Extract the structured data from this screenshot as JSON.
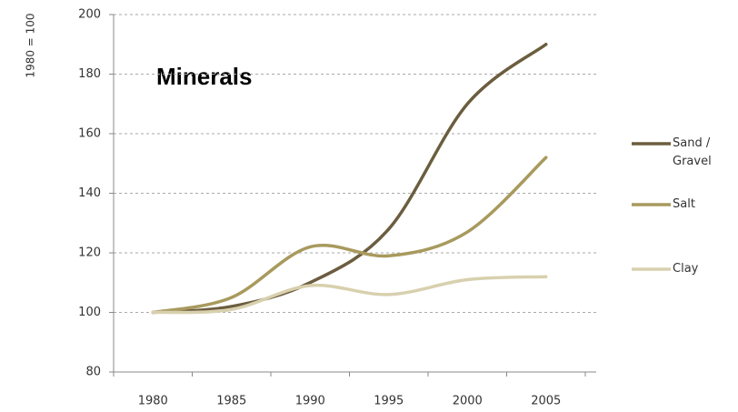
{
  "chart_data": {
    "type": "line",
    "title": "Minerals",
    "y_label": "1980 = 100",
    "categories": [
      "1980",
      "1985",
      "1990",
      "1995",
      "2000",
      "2005"
    ],
    "series": [
      {
        "name": "Sand / Gravel",
        "color": "#6b5d3f",
        "values": [
          100,
          102,
          110,
          128,
          170,
          190
        ]
      },
      {
        "name": "Salt",
        "color": "#a89a5e",
        "values": [
          100,
          105,
          122,
          119,
          127,
          152
        ]
      },
      {
        "name": "Clay",
        "color": "#d8d0ae",
        "values": [
          100,
          101,
          109,
          106,
          111,
          112
        ]
      }
    ],
    "ylim": [
      80,
      200
    ],
    "yticks": [
      80,
      100,
      120,
      140,
      160,
      180,
      200
    ],
    "grid": true,
    "legend": "right"
  }
}
